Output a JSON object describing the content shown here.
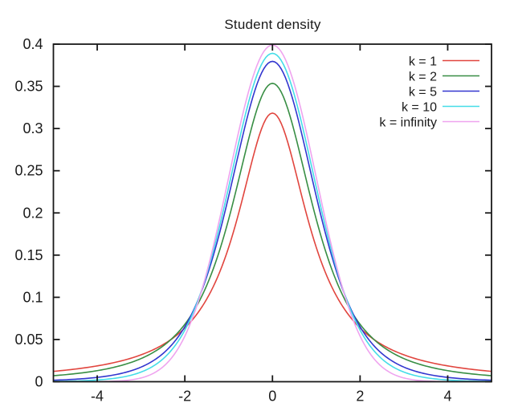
{
  "figure": {
    "background": "#ffffff",
    "frame_color": "#1a1a1a",
    "text_color": "#1a1a1a"
  },
  "chart_data": {
    "type": "line",
    "title": "Student density",
    "xlabel": "",
    "ylabel": "",
    "xlim": [
      -5,
      5
    ],
    "ylim": [
      0,
      0.4
    ],
    "grid": false,
    "legend_position": "top-right",
    "x_ticks": [
      -4,
      -2,
      0,
      2,
      4
    ],
    "x_tick_labels": [
      "-4",
      "-2",
      "0",
      "2",
      "4"
    ],
    "y_ticks": [
      0,
      0.05,
      0.1,
      0.15,
      0.2,
      0.25,
      0.3,
      0.35,
      0.4
    ],
    "y_tick_labels": [
      "0",
      "0.05",
      "0.1",
      "0.15",
      "0.2",
      "0.25",
      "0.3",
      "0.35",
      "0.4"
    ],
    "symmetry": "even functions of x, centered at 0",
    "sample_x": [
      0,
      0.5,
      1,
      1.5,
      2,
      2.5,
      3,
      3.5,
      4,
      4.5,
      5
    ],
    "series": [
      {
        "name": "k = 1",
        "k": 1,
        "color": "#e1453e",
        "kind": "student-t",
        "coef": 0.31831,
        "pow": 1,
        "peak": 0.3183,
        "sample_y": [
          0.3183,
          0.2546,
          0.1592,
          0.0979,
          0.0637,
          0.0439,
          0.0318,
          0.024,
          0.0187,
          0.015,
          0.0122
        ]
      },
      {
        "name": "k = 2",
        "k": 2,
        "color": "#388e44",
        "kind": "student-t",
        "coef": 0.35355,
        "pow": 1.5,
        "peak": 0.3536,
        "sample_y": [
          0.3536,
          0.2963,
          0.1925,
          0.1142,
          0.068,
          0.0422,
          0.0274,
          0.0186,
          0.0131,
          0.0095,
          0.0071
        ]
      },
      {
        "name": "k = 5",
        "k": 5,
        "color": "#3236cf",
        "kind": "student-t",
        "coef": 0.3796,
        "pow": 3,
        "peak": 0.3796,
        "sample_y": [
          0.3796,
          0.3279,
          0.2197,
          0.1245,
          0.0651,
          0.0333,
          0.0173,
          0.0092,
          0.0051,
          0.0029,
          0.0018
        ]
      },
      {
        "name": "k = 10",
        "k": 10,
        "color": "#45dde8",
        "kind": "student-t",
        "coef": 0.38911,
        "pow": 5.5,
        "peak": 0.3891,
        "sample_y": [
          0.3891,
          0.3397,
          0.2304,
          0.1274,
          0.0612,
          0.0268,
          0.0114,
          0.0048,
          0.002,
          0.0009,
          0.0004
        ]
      },
      {
        "name": "k = infinity",
        "k": "infinity",
        "color": "#efa4ef",
        "kind": "normal",
        "coef": 0.39894,
        "pow": null,
        "peak": 0.3989,
        "sample_y": [
          0.3989,
          0.3521,
          0.242,
          0.1295,
          0.054,
          0.0175,
          0.0044,
          0.0009,
          0.0001,
          0.0,
          0.0
        ]
      }
    ]
  }
}
